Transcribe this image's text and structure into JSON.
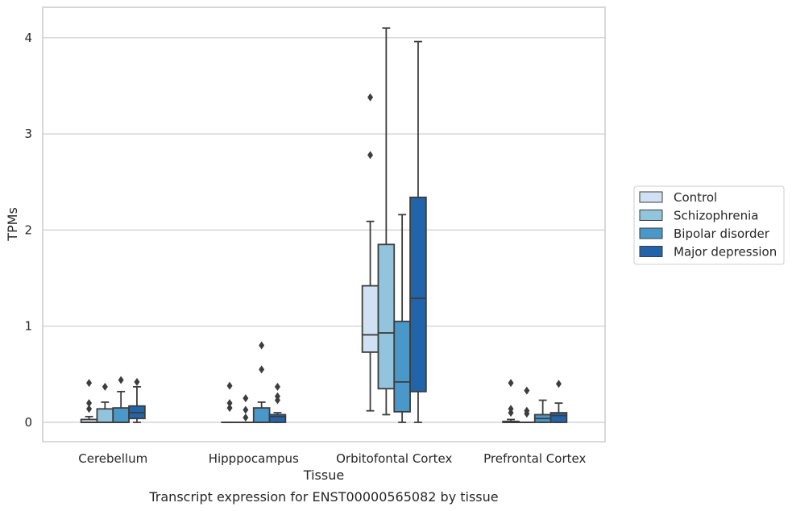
{
  "caption": "Transcript expression for ENST00000565082 by tissue",
  "chart_data": {
    "type": "boxplot",
    "xlabel": "Tissue",
    "ylabel": "TPMs",
    "ylim": [
      -0.2,
      4.3
    ],
    "yticks": [
      "0",
      "1",
      "2",
      "3",
      "4"
    ],
    "grid": "horizontal",
    "legend_position": "right",
    "categories": [
      "Cerebellum",
      "Hipppocampus",
      "Orbitofontal Cortex",
      "Prefrontal Cortex"
    ],
    "series": [
      {
        "name": "Control",
        "color": "#cfe1f2",
        "boxes": [
          {
            "min": 0,
            "q1": 0,
            "median": 0,
            "q3": 0.03,
            "max": 0.06,
            "outliers": [
              0.14,
              0.2,
              0.41
            ]
          },
          {
            "min": 0,
            "q1": 0,
            "median": 0,
            "q3": 0,
            "max": 0,
            "outliers": [
              0.15,
              0.2,
              0.38
            ]
          },
          {
            "min": 0.12,
            "q1": 0.73,
            "median": 0.91,
            "q3": 1.42,
            "max": 2.09,
            "outliers": [
              2.78,
              3.38
            ]
          },
          {
            "min": 0,
            "q1": 0,
            "median": 0,
            "q3": 0.01,
            "max": 0.03,
            "outliers": [
              0.1,
              0.14,
              0.41
            ]
          }
        ]
      },
      {
        "name": "Schizophrenia",
        "color": "#93c4de",
        "boxes": [
          {
            "min": 0,
            "q1": 0,
            "median": 0,
            "q3": 0.14,
            "max": 0.21,
            "outliers": [
              0.37
            ]
          },
          {
            "min": 0,
            "q1": 0,
            "median": 0,
            "q3": 0,
            "max": 0,
            "outliers": [
              0.05,
              0.13,
              0.25
            ]
          },
          {
            "min": 0.08,
            "q1": 0.35,
            "median": 0.93,
            "q3": 1.85,
            "max": 4.1,
            "outliers": []
          },
          {
            "min": 0,
            "q1": 0,
            "median": 0,
            "q3": 0,
            "max": 0,
            "outliers": [
              0.09,
              0.12,
              0.33
            ]
          }
        ]
      },
      {
        "name": "Bipolar disorder",
        "color": "#4a98c9",
        "boxes": [
          {
            "min": 0,
            "q1": 0,
            "median": 0,
            "q3": 0.15,
            "max": 0.32,
            "outliers": [
              0.44
            ]
          },
          {
            "min": 0,
            "q1": 0,
            "median": 0,
            "q3": 0.15,
            "max": 0.21,
            "outliers": [
              0.55,
              0.8
            ]
          },
          {
            "min": 0,
            "q1": 0.11,
            "median": 0.42,
            "q3": 1.05,
            "max": 2.16,
            "outliers": []
          },
          {
            "min": 0,
            "q1": 0,
            "median": 0.04,
            "q3": 0.08,
            "max": 0.23,
            "outliers": []
          }
        ]
      },
      {
        "name": "Major depression",
        "color": "#2264a9",
        "boxes": [
          {
            "min": 0,
            "q1": 0.04,
            "median": 0.1,
            "q3": 0.17,
            "max": 0.37,
            "outliers": [
              0.42
            ]
          },
          {
            "min": 0,
            "q1": 0,
            "median": 0.06,
            "q3": 0.08,
            "max": 0.1,
            "outliers": [
              0.23,
              0.27,
              0.37
            ]
          },
          {
            "min": 0,
            "q1": 0.32,
            "median": 1.29,
            "q3": 2.34,
            "max": 3.96,
            "outliers": []
          },
          {
            "min": 0,
            "q1": 0,
            "median": 0.07,
            "q3": 0.1,
            "max": 0.2,
            "outliers": [
              0.4
            ]
          }
        ]
      }
    ]
  }
}
